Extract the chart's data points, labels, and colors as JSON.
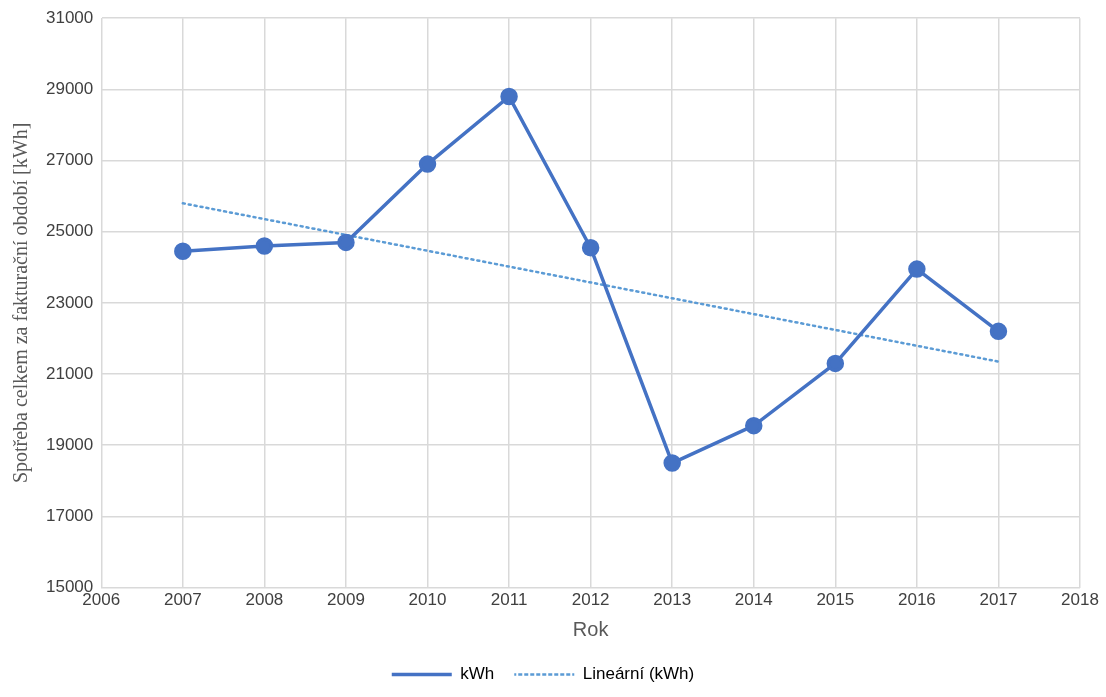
{
  "chart_data": {
    "type": "line",
    "xlabel": "Rok",
    "ylabel": "Spotřeba celkem za fakturační období [kWh]",
    "xlim": [
      2006,
      2018
    ],
    "xticks": [
      2006,
      2007,
      2008,
      2009,
      2010,
      2011,
      2012,
      2013,
      2014,
      2015,
      2016,
      2017,
      2018
    ],
    "ylim": [
      15000,
      31000
    ],
    "yticks": [
      15000,
      17000,
      19000,
      21000,
      23000,
      25000,
      27000,
      29000,
      31000
    ],
    "grid": true,
    "legend": "bottom",
    "marker": "circle",
    "series": [
      {
        "name": "kWh",
        "color": "#4472c4",
        "x": [
          2007,
          2008,
          2009,
          2010,
          2011,
          2012,
          2013,
          2014,
          2015,
          2016,
          2017
        ],
        "values": [
          24450,
          24600,
          24700,
          26900,
          28800,
          24550,
          18500,
          19550,
          21300,
          23950,
          22200
        ],
        "line_style": "solid"
      },
      {
        "name": "Lineární (kWh)",
        "type": "line",
        "color": "#5b9bd5",
        "x": [
          2007,
          2017
        ],
        "values": [
          25800,
          21350
        ],
        "marker": "none",
        "line_style": "dotted"
      }
    ]
  }
}
